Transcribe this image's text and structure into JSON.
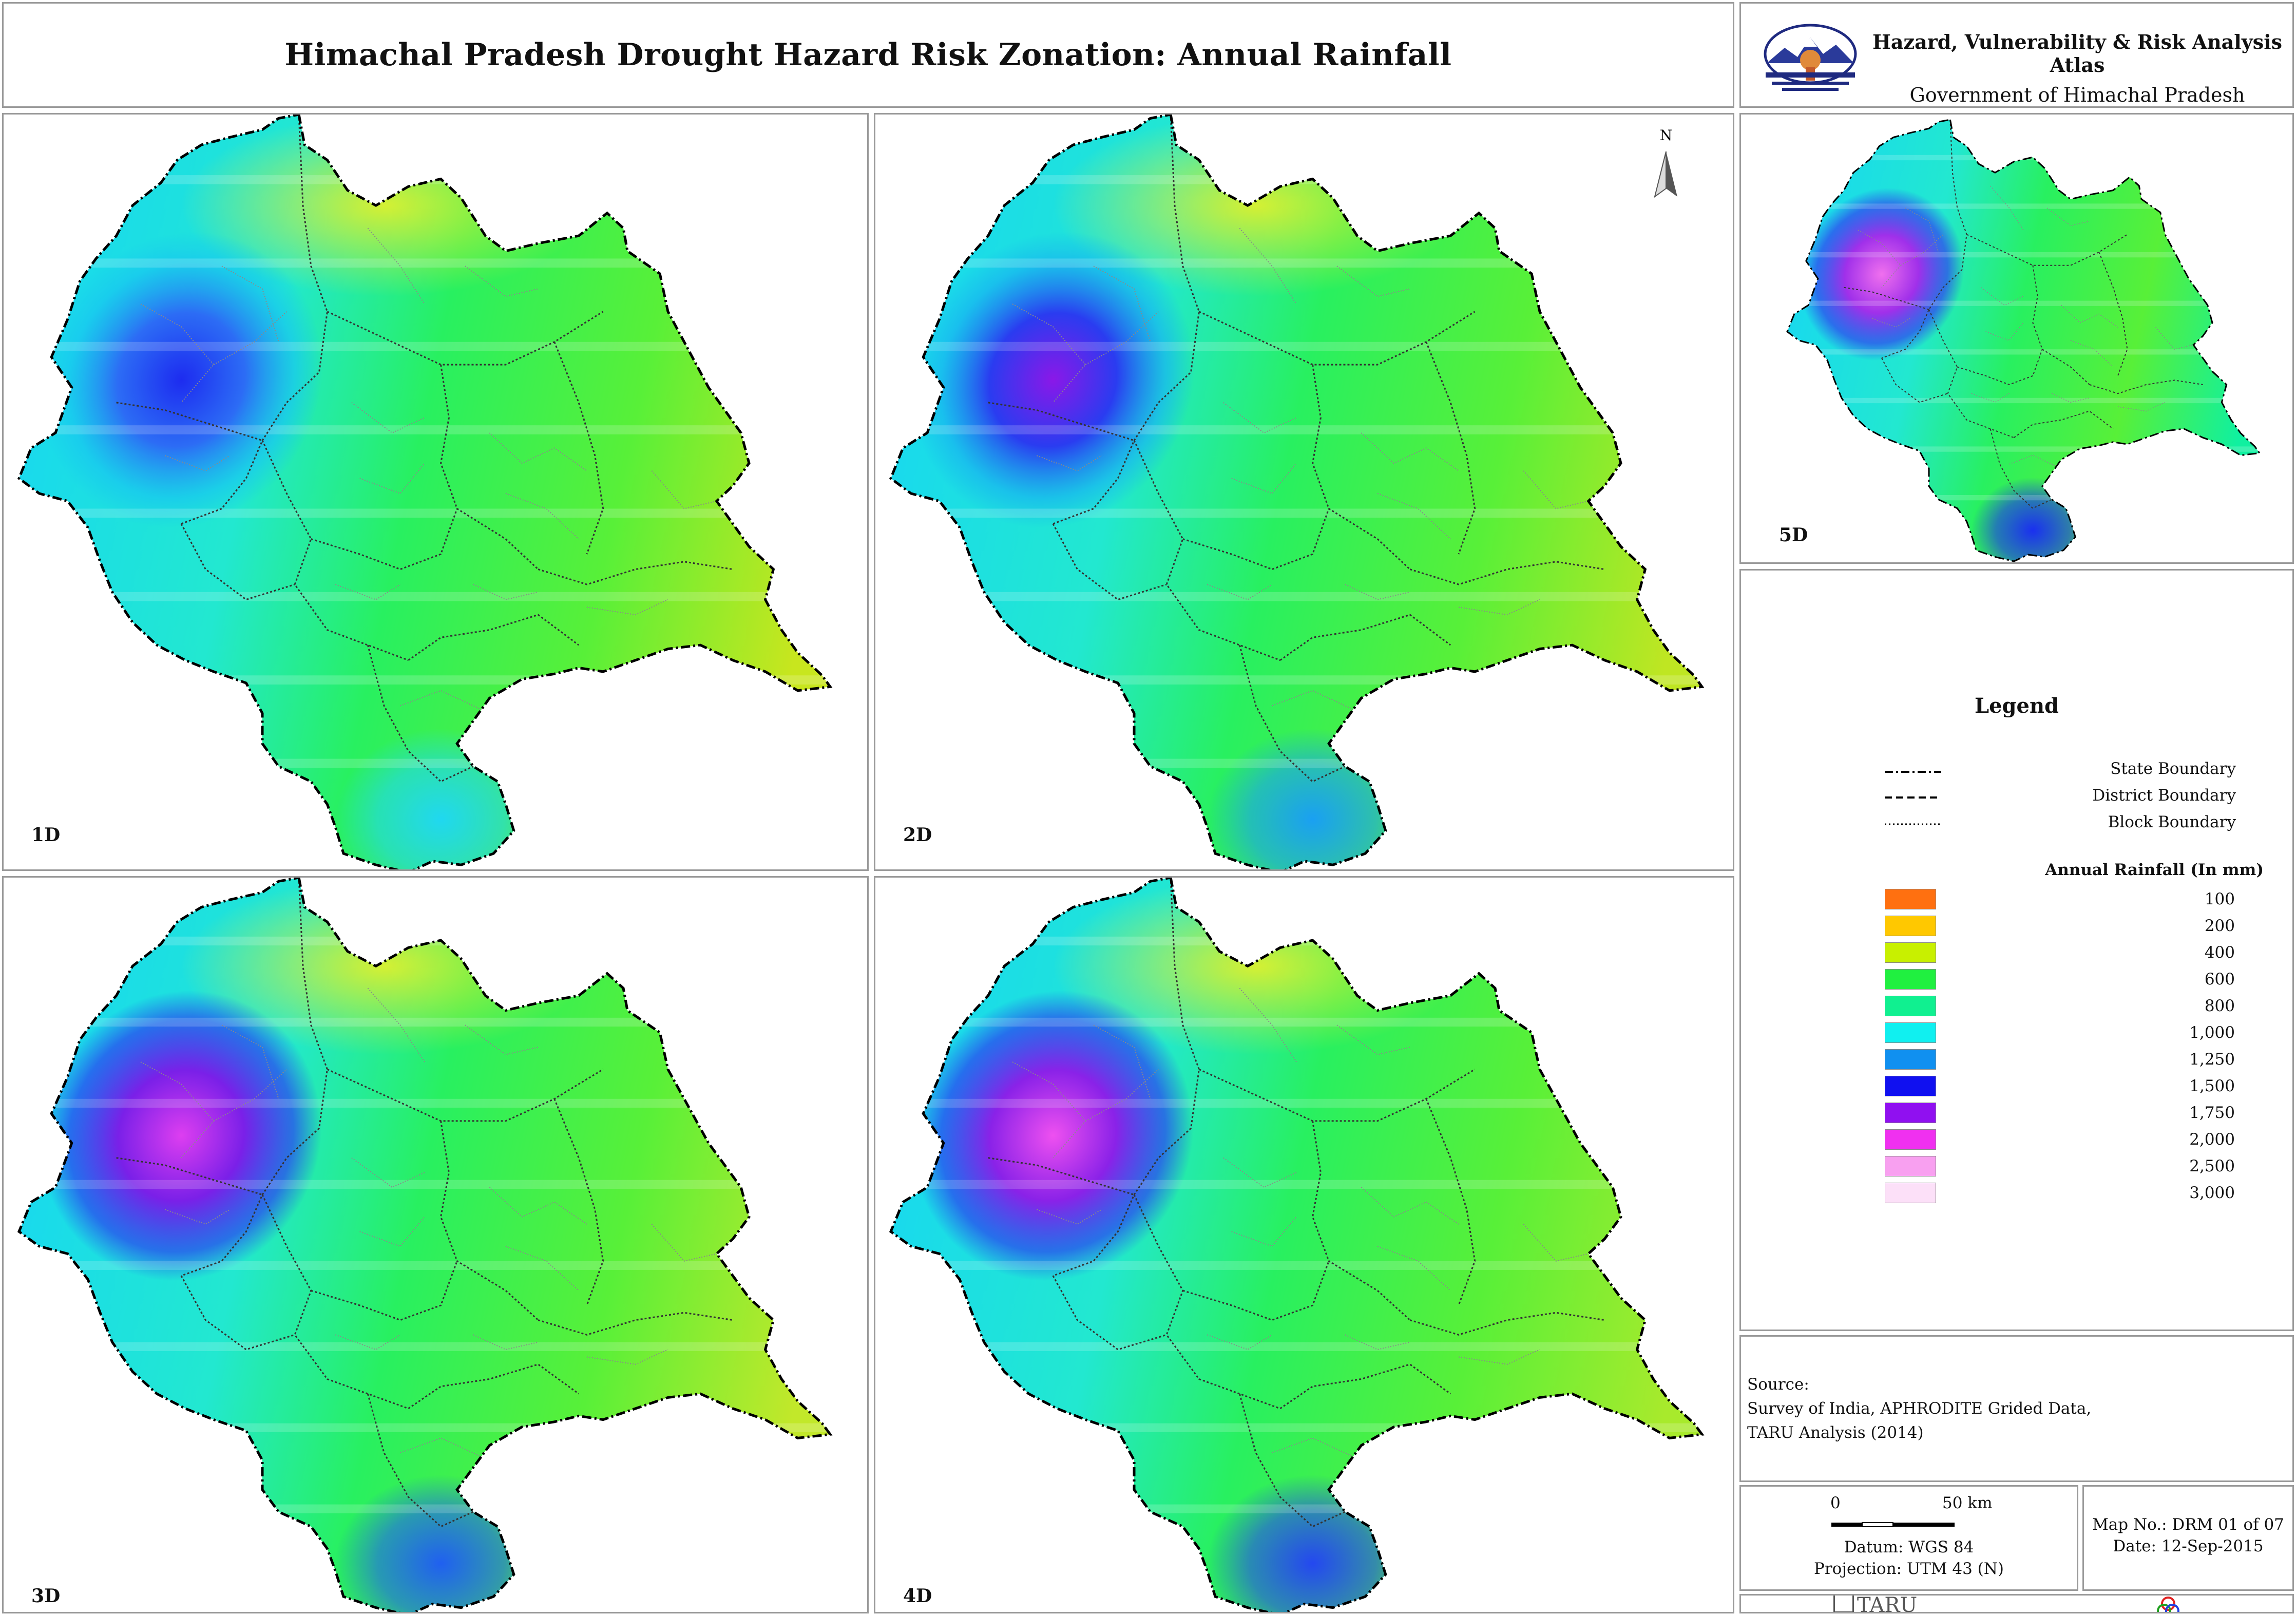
{
  "title": "Himachal Pradesh Drought Hazard Risk Zonation: Annual Rainfall",
  "atlas": {
    "title": "Hazard, Vulnerability & Risk Analysis Atlas",
    "subtitle": "Government of Himachal Pradesh"
  },
  "north_label": "N",
  "panels": [
    {
      "label": "1D",
      "hotspot": [
        "#1d2cf0",
        "#2c6cf5",
        "#18c6f0"
      ],
      "east": "#c8e61e",
      "south": "#20d8f0"
    },
    {
      "label": "2D",
      "hotspot": [
        "#8a18e8",
        "#2a3cf0",
        "#18b4f0"
      ],
      "east": "#bfe622",
      "south": "#1aa0f2"
    },
    {
      "label": "3D",
      "hotspot": [
        "#dd3ef0",
        "#7a20e8",
        "#2a40f0"
      ],
      "east": "#c2e82a",
      "south": "#2060f0"
    },
    {
      "label": "4D",
      "hotspot": [
        "#ee50f0",
        "#8a22e8",
        "#2a40f0"
      ],
      "east": "#a8ea2c",
      "south": "#2448f0"
    },
    {
      "label": "5D",
      "hotspot": [
        "#f070ee",
        "#a030ea",
        "#3040f0"
      ],
      "east": "#10f0a0",
      "south": "#1a30f0"
    }
  ],
  "legend": {
    "title": "Legend",
    "boundaries": [
      {
        "label": "State Boundary",
        "style": "dash-dot"
      },
      {
        "label": "District Boundary",
        "style": "dashed"
      },
      {
        "label": "Block Boundary",
        "style": "dotted"
      }
    ],
    "rainfall_title": "Annual Rainfall (In mm)",
    "classes": [
      {
        "label": "100",
        "color": "#ff7010"
      },
      {
        "label": "200",
        "color": "#ffc800"
      },
      {
        "label": "400",
        "color": "#c8f000"
      },
      {
        "label": "600",
        "color": "#20f040"
      },
      {
        "label": "800",
        "color": "#10f090"
      },
      {
        "label": "1,000",
        "color": "#10f0f0"
      },
      {
        "label": "1,250",
        "color": "#1090f0"
      },
      {
        "label": "1,500",
        "color": "#1010f0"
      },
      {
        "label": "1,750",
        "color": "#9010f0"
      },
      {
        "label": "2,000",
        "color": "#f030f0"
      },
      {
        "label": "2,500",
        "color": "#f8a0f0"
      },
      {
        "label": "3,000",
        "color": "#fce0f8"
      }
    ]
  },
  "source": {
    "heading": "Source:",
    "lines": [
      "Survey of India, APHRODITE Grided Data,",
      "TARU Analysis (2014)"
    ]
  },
  "scale": {
    "start": "0",
    "end": "50 km",
    "datum": "Datum: WGS 84",
    "projection": "Projection: UTM 43 (N)"
  },
  "map_no": "Map No.: DRM 01 of 07",
  "date": "Date: 12-Sep-2015",
  "brand": "TARU"
}
